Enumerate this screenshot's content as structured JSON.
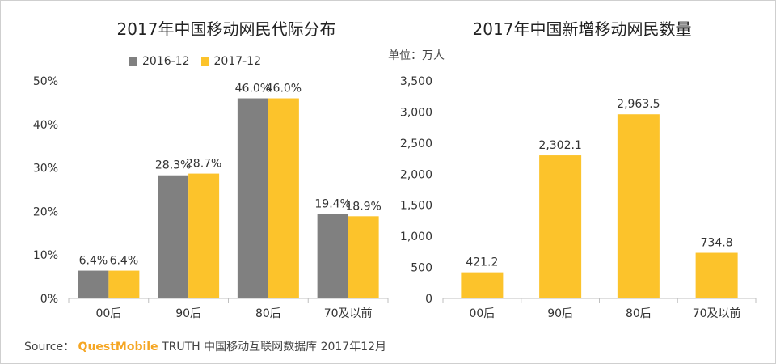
{
  "chart_data": [
    {
      "type": "bar",
      "title": "2017年中国移动网民代际分布",
      "categories": [
        "00后",
        "90后",
        "80后",
        "70及以前"
      ],
      "series": [
        {
          "name": "2016-12",
          "values": [
            6.4,
            28.3,
            46.0,
            19.4
          ],
          "labels": [
            "6.4%",
            "28.3%",
            "46.0%",
            "19.4%"
          ],
          "color": "#808080"
        },
        {
          "name": "2017-12",
          "values": [
            6.4,
            28.7,
            46.0,
            18.9
          ],
          "labels": [
            "6.4%",
            "28.7%",
            "46.0%",
            "18.9%"
          ],
          "color": "#fcc32b"
        }
      ],
      "ylim": [
        0,
        50
      ],
      "yticks": [
        "0%",
        "10%",
        "20%",
        "30%",
        "40%",
        "50%"
      ],
      "legend": "top"
    },
    {
      "type": "bar",
      "title": "2017年中国新增移动网民数量",
      "unit": "单位：万人",
      "categories": [
        "00后",
        "90后",
        "80后",
        "70及以前"
      ],
      "series": [
        {
          "values": [
            421.2,
            2302.1,
            2963.5,
            734.8
          ],
          "labels": [
            "421.2",
            "2,302.1",
            "2,963.5",
            "734.8"
          ],
          "color": "#fcc32b"
        }
      ],
      "ylim": [
        0,
        3500
      ],
      "yticks": [
        "0",
        "500",
        "1,000",
        "1,500",
        "2,000",
        "2,500",
        "3,000",
        "3,500"
      ]
    }
  ],
  "source": {
    "prefix": "Source：",
    "brand": "QuestMobile",
    "text": "TRUTH 中国移动互联网数据库 2017年12月"
  }
}
